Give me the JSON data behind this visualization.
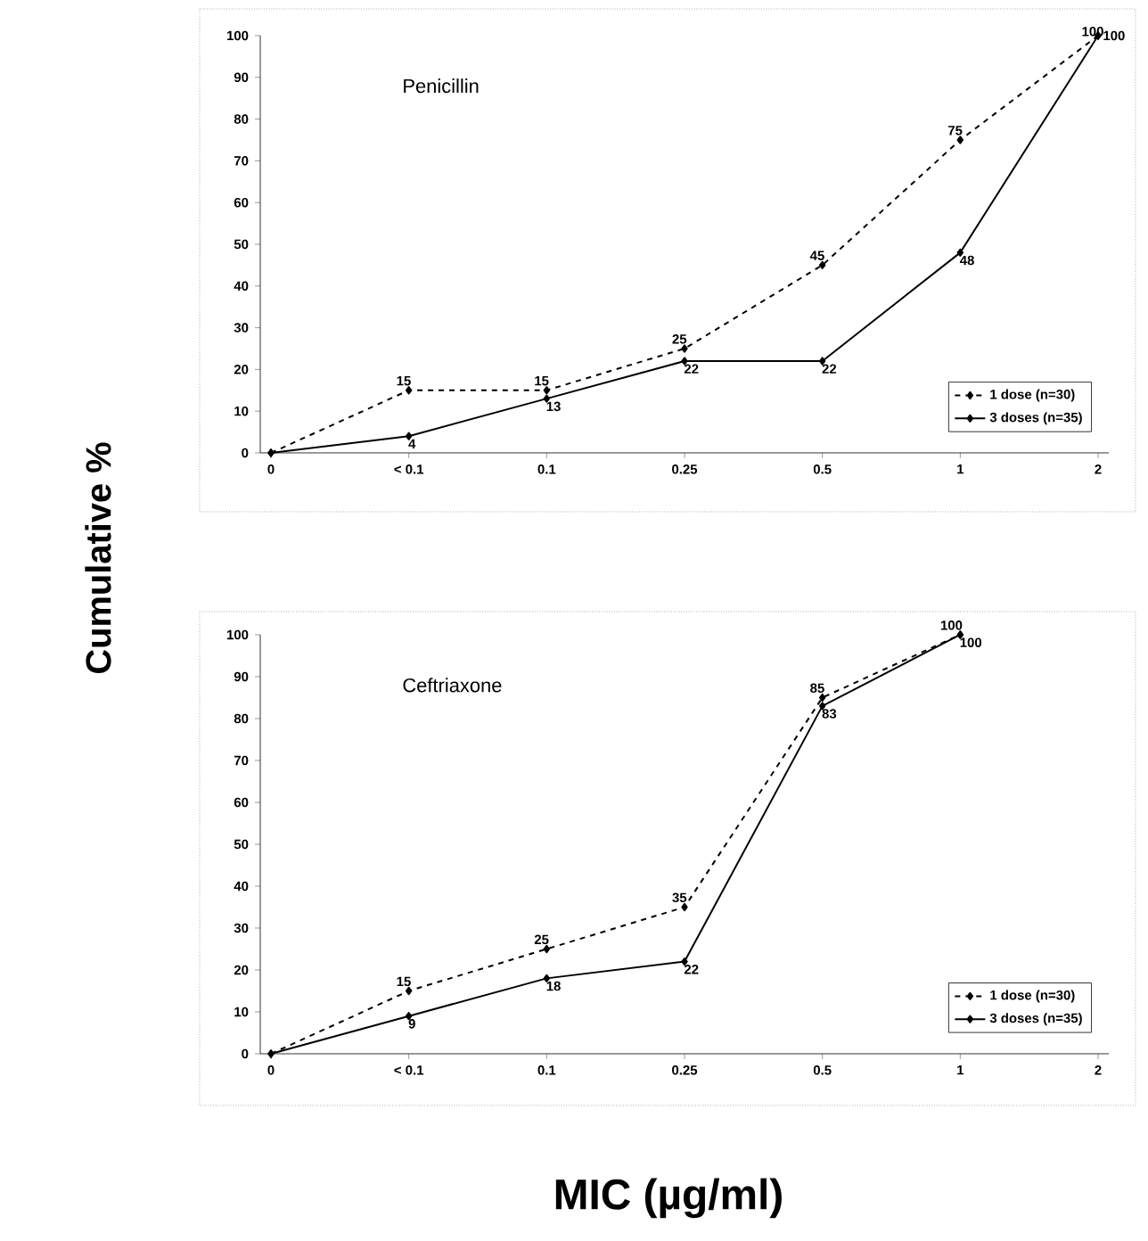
{
  "chart_data": [
    {
      "type": "line",
      "title": "Penicillin",
      "ylabel": "Cumulative %",
      "categories": [
        "0",
        "< 0.1",
        "0.1",
        "0.25",
        "0.5",
        "1",
        "2"
      ],
      "ylim": [
        0,
        100
      ],
      "yticks": [
        0,
        10,
        20,
        30,
        40,
        50,
        60,
        70,
        80,
        90,
        100
      ],
      "legend": "bottom right",
      "marker": "diamond",
      "series": [
        {
          "name": "1 dose (n=30)",
          "color": "#000000",
          "line_style": "dashed",
          "values": [
            0,
            15,
            15,
            25,
            45,
            75,
            100
          ],
          "value_labels": [
            null,
            "15",
            "15",
            "25",
            "45",
            "75",
            "100"
          ]
        },
        {
          "name": "3 doses (n=35)",
          "color": "#000000",
          "line_style": "solid",
          "values": [
            0,
            4,
            13,
            22,
            22,
            48,
            100
          ],
          "value_labels": [
            null,
            "4",
            "13",
            "22",
            "22",
            "48",
            "100"
          ]
        }
      ]
    },
    {
      "type": "line",
      "title": "Ceftriaxone",
      "xlabel": "MIC (µg/ml)",
      "categories": [
        "0",
        "< 0.1",
        "0.1",
        "0.25",
        "0.5",
        "1",
        "2"
      ],
      "ylim": [
        0,
        100
      ],
      "yticks": [
        0,
        10,
        20,
        30,
        40,
        50,
        60,
        70,
        80,
        90,
        100
      ],
      "legend": "bottom right",
      "marker": "diamond",
      "series": [
        {
          "name": "1 dose (n=30)",
          "color": "#000000",
          "line_style": "dashed",
          "values": [
            0,
            15,
            25,
            35,
            85,
            100,
            null
          ],
          "value_labels": [
            null,
            "15",
            "25",
            "35",
            "85",
            "100",
            null
          ]
        },
        {
          "name": "3 doses (n=35)",
          "color": "#000000",
          "line_style": "solid",
          "values": [
            0,
            9,
            18,
            22,
            83,
            100,
            null
          ],
          "value_labels": [
            null,
            "9",
            "18",
            "22",
            "83",
            "100",
            null
          ]
        }
      ]
    }
  ]
}
